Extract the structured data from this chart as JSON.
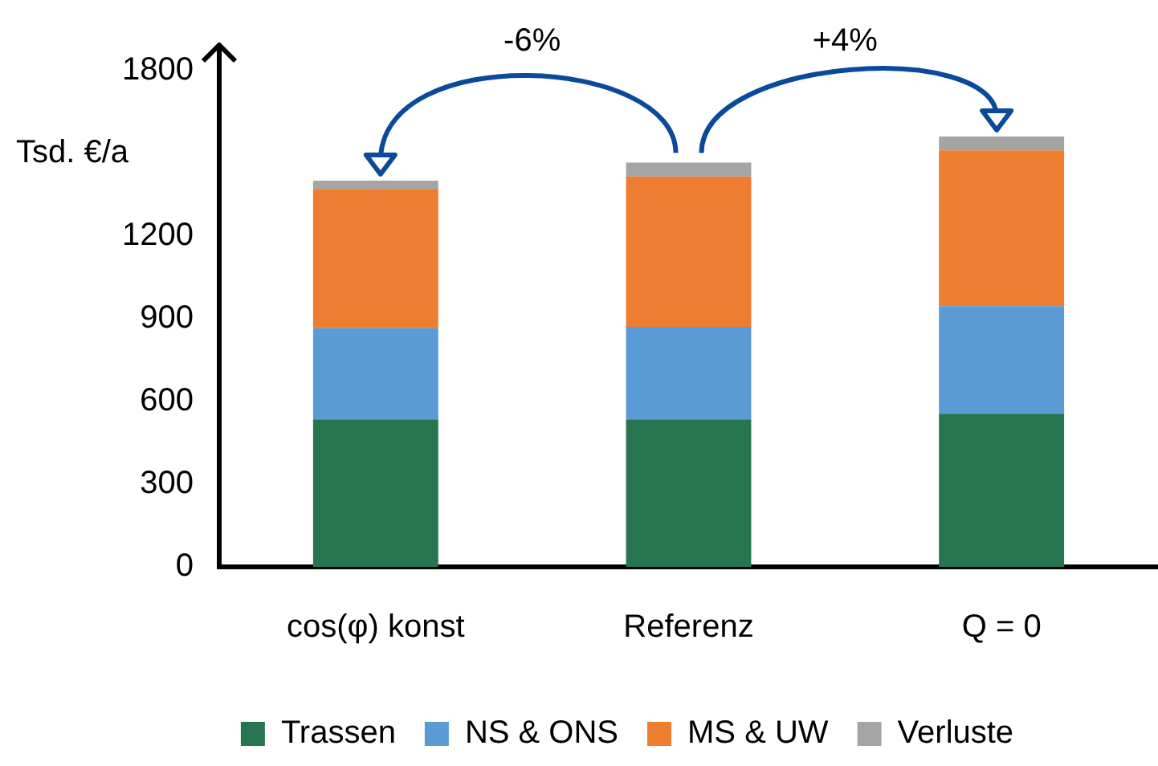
{
  "chart_data": {
    "type": "bar",
    "stacked": true,
    "ylabel": "Tsd. €/a",
    "categories": [
      "cos(φ) konst",
      "Referenz",
      "Q = 0"
    ],
    "series": [
      {
        "name": "Trassen",
        "color": "#277550",
        "values": [
          535,
          535,
          555
        ]
      },
      {
        "name": "NS & ONS",
        "color": "#5b9bd5",
        "values": [
          330,
          335,
          390
        ]
      },
      {
        "name": "MS & UW",
        "color": "#ed7d31",
        "values": [
          505,
          545,
          565
        ]
      },
      {
        "name": "Verluste",
        "color": "#a5a5a5",
        "values": [
          30,
          50,
          50
        ]
      }
    ],
    "ylim": [
      0,
      1880
    ],
    "yticks": [
      0,
      300,
      600,
      900,
      1200,
      1800
    ],
    "grid": false,
    "legend": "bottom",
    "annotations": [
      "-6%",
      "+4%"
    ]
  }
}
